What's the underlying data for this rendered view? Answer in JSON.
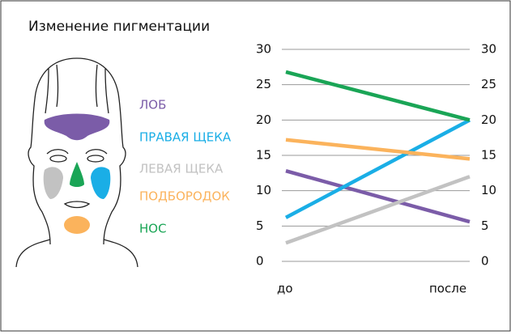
{
  "chart_data": {
    "type": "line",
    "title": "Изменение пигментации",
    "categories": [
      "до",
      "после"
    ],
    "series": [
      {
        "name": "ЛОБ",
        "color": "#7b5ca8",
        "values": [
          12.8,
          5.6
        ]
      },
      {
        "name": "ПРАВАЯ ЩЕКА",
        "color": "#1aaee6",
        "values": [
          6.2,
          20
        ]
      },
      {
        "name": "ЛЕВАЯ ЩЕКА",
        "color": "#c2c2c2",
        "values": [
          2.6,
          12
        ]
      },
      {
        "name": "ПОДБОРОДОК",
        "color": "#fbb35c",
        "values": [
          17.2,
          14.5
        ]
      },
      {
        "name": "НОС",
        "color": "#1aa556",
        "values": [
          26.8,
          20
        ]
      }
    ],
    "ylim": [
      0,
      30
    ],
    "yticks": [
      0,
      5,
      10,
      15,
      20,
      25,
      30
    ],
    "grid": true
  }
}
